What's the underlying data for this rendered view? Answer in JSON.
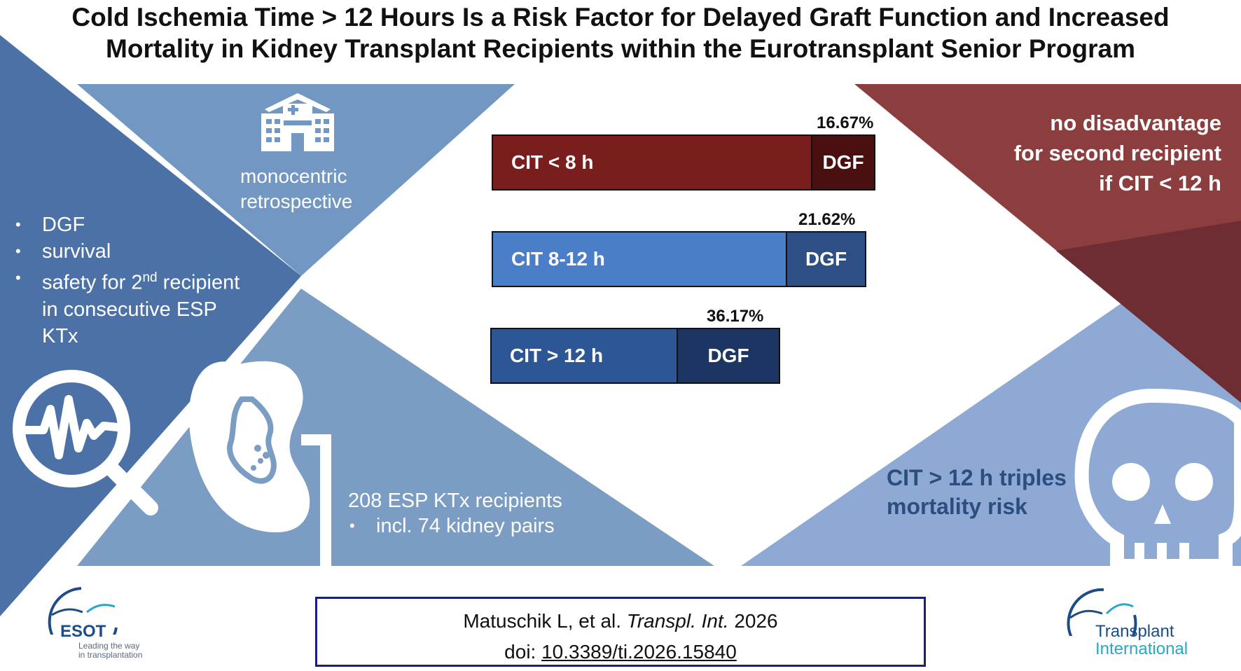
{
  "title": {
    "line1": "Cold Ischemia Time > 12 Hours Is a Risk Factor for Delayed Graft Function and Increased",
    "line2": "Mortality in Kidney Transplant Recipients within the Eurotransplant Senior Program"
  },
  "left_panel": {
    "bullets": [
      {
        "text": "DGF"
      },
      {
        "text": "survival"
      },
      {
        "text_before": "safety for 2",
        "superscript": "nd",
        "text_after": " recipient",
        "continuation": [
          "in consecutive ESP",
          "KTx"
        ]
      }
    ],
    "icon": "magnifier-pulse-icon"
  },
  "study_design": {
    "line1": "monocentric",
    "line2": "retrospective",
    "icon": "hospital-icon"
  },
  "cohort": {
    "line1": "208 ESP KTx recipients",
    "sub_bullet": "incl. 74 kidney pairs",
    "icon": "kidney-icon"
  },
  "right_top": {
    "line1": "no disadvantage",
    "line2": "for second recipient",
    "line3": "if CIT < 12 h"
  },
  "right_bottom": {
    "line1": "CIT > 12 h triples",
    "line2": "mortality risk",
    "icon": "skull-icon"
  },
  "bars": [
    {
      "label": "CIT < 8 h",
      "dgf_label": "DGF",
      "percent_label": "16.67%",
      "dgf_fraction": 0.1667,
      "color": "#7a1d1d",
      "dgf_color": "#4a1010"
    },
    {
      "label": "CIT 8-12 h",
      "dgf_label": "DGF",
      "percent_label": "21.62%",
      "dgf_fraction": 0.2162,
      "color": "#4a7ec8",
      "dgf_color": "#2e4f85"
    },
    {
      "label": "CIT > 12 h",
      "dgf_label": "DGF",
      "percent_label": "36.17%",
      "dgf_fraction": 0.3617,
      "color": "#2c5694",
      "dgf_color": "#1c3563"
    }
  ],
  "citation": {
    "authors": "Matuschik L, et al. ",
    "journal": "Transpl. Int.",
    "year": " 2026",
    "doi_prefix": "doi: ",
    "doi": "10.3389/ti.2026.15840"
  },
  "logos": {
    "esot_name": "ESOT",
    "esot_tagline1": "Leading the way",
    "esot_tagline2": "in transplantation",
    "ti_line1": "Transplant",
    "ti_line2": "International"
  },
  "colors": {
    "left_dark": "#4c71a6",
    "mid_light": "#7b9cc3",
    "mid_top": "#7297c2",
    "right_red": "#8c3e3f",
    "right_red_dark": "#6e2c33",
    "right_blue": "#8ea9d3"
  }
}
